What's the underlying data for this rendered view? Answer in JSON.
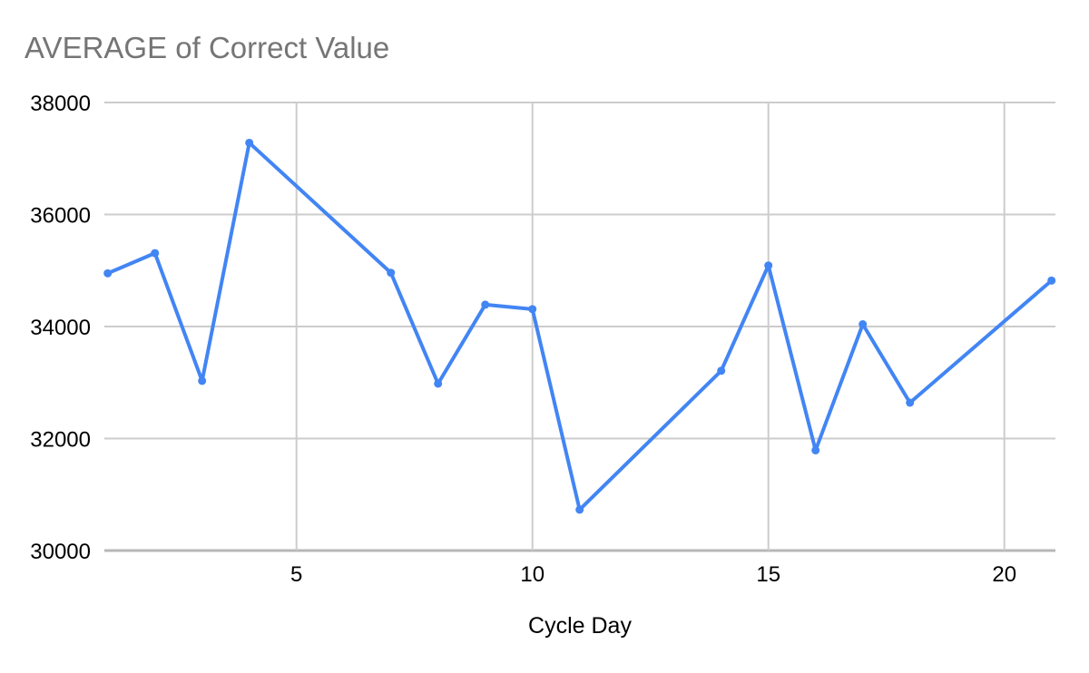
{
  "chart_data": {
    "type": "line",
    "title": "AVERAGE of Correct Value",
    "xlabel": "Cycle Day",
    "ylabel": "",
    "x": [
      1,
      2,
      3,
      4,
      7,
      8,
      9,
      10,
      11,
      14,
      15,
      16,
      17,
      18,
      21
    ],
    "series": [
      {
        "name": "AVERAGE of Correct Value",
        "color": "#4285f4",
        "values": [
          34950,
          35310,
          33030,
          37280,
          34960,
          32980,
          34390,
          34310,
          30730,
          33210,
          35090,
          31790,
          34040,
          32640,
          34820
        ]
      }
    ],
    "xticks": [
      5,
      10,
      15,
      20
    ],
    "yticks": [
      30000,
      32000,
      34000,
      36000,
      38000
    ],
    "xlim": [
      1,
      21
    ],
    "ylim": [
      30000,
      38000
    ],
    "grid": true,
    "legend_position": "none",
    "colors": {
      "line": "#4285f4",
      "gridline": "#cccccc",
      "baseline": "#b7b7b7",
      "title": "#757575",
      "tick_label": "#000000",
      "background": "#ffffff"
    },
    "marker": "circle"
  }
}
